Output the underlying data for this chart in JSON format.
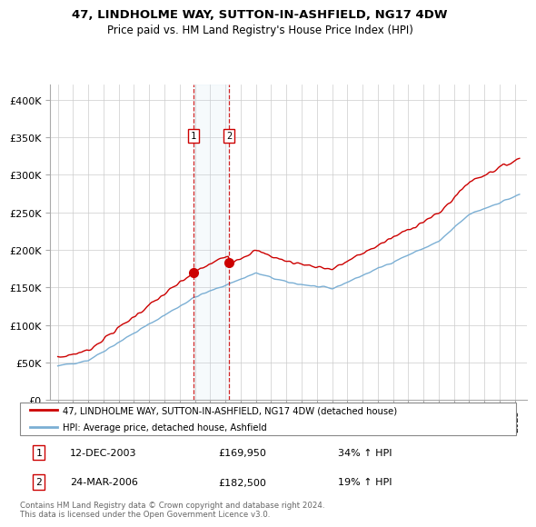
{
  "title": "47, LINDHOLME WAY, SUTTON-IN-ASHFIELD, NG17 4DW",
  "subtitle": "Price paid vs. HM Land Registry's House Price Index (HPI)",
  "legend_line1": "47, LINDHOLME WAY, SUTTON-IN-ASHFIELD, NG17 4DW (detached house)",
  "legend_line2": "HPI: Average price, detached house, Ashfield",
  "transaction1_date": "12-DEC-2003",
  "transaction1_price": "£169,950",
  "transaction1_hpi": "34% ↑ HPI",
  "transaction2_date": "24-MAR-2006",
  "transaction2_price": "£182,500",
  "transaction2_hpi": "19% ↑ HPI",
  "footer": "Contains HM Land Registry data © Crown copyright and database right 2024.\nThis data is licensed under the Open Government Licence v3.0.",
  "ylim": [
    0,
    420000
  ],
  "yticks": [
    0,
    50000,
    100000,
    150000,
    200000,
    250000,
    300000,
    350000,
    400000
  ],
  "ytick_labels": [
    "£0",
    "£50K",
    "£100K",
    "£150K",
    "£200K",
    "£250K",
    "£300K",
    "£350K",
    "£400K"
  ],
  "red_color": "#cc0000",
  "blue_color": "#7bafd4",
  "grid_color": "#cccccc",
  "marker1_x": 2003.92,
  "marker1_y": 169950,
  "marker2_x": 2006.23,
  "marker2_y": 182500,
  "vline1_x": 2003.92,
  "vline2_x": 2006.23,
  "xlim_left": 1994.5,
  "xlim_right": 2025.8
}
